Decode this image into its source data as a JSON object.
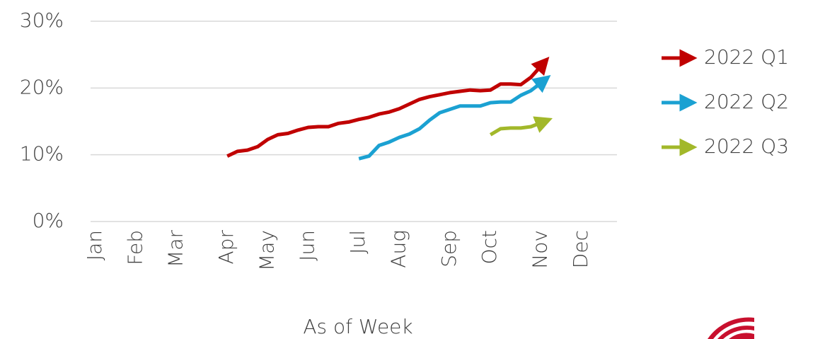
{
  "chart_data": {
    "type": "line",
    "x_label": "As of Week",
    "categories": [
      "Jan",
      null,
      null,
      null,
      "Feb",
      null,
      null,
      null,
      "Mar",
      null,
      null,
      null,
      null,
      "Apr",
      null,
      null,
      null,
      "May",
      null,
      null,
      null,
      "Jun",
      null,
      null,
      null,
      null,
      "Jul",
      null,
      null,
      null,
      "Aug",
      null,
      null,
      null,
      null,
      "Sep",
      null,
      null,
      null,
      "Oct",
      null,
      null,
      null,
      null,
      "Nov",
      null,
      null,
      null,
      "Dec",
      null,
      null,
      null
    ],
    "series": [
      {
        "name": "2022 Q1",
        "color": "#c00000",
        "values": [
          null,
          null,
          null,
          null,
          null,
          null,
          null,
          null,
          null,
          null,
          null,
          null,
          null,
          9.8,
          10.5,
          10.7,
          11.2,
          12.3,
          13.0,
          13.2,
          13.7,
          14.1,
          14.2,
          14.2,
          14.7,
          14.9,
          15.3,
          15.6,
          16.1,
          16.4,
          16.9,
          17.6,
          18.3,
          18.7,
          19.0,
          19.3,
          19.5,
          19.7,
          19.6,
          19.7,
          20.6,
          20.6,
          20.5,
          21.6,
          23.3,
          null,
          null,
          null,
          null,
          null,
          null,
          null
        ]
      },
      {
        "name": "2022 Q2",
        "color": "#1ba1d2",
        "values": [
          null,
          null,
          null,
          null,
          null,
          null,
          null,
          null,
          null,
          null,
          null,
          null,
          null,
          null,
          null,
          null,
          null,
          null,
          null,
          null,
          null,
          null,
          null,
          null,
          null,
          null,
          9.4,
          9.8,
          11.4,
          11.9,
          12.6,
          13.1,
          13.9,
          15.2,
          16.3,
          16.8,
          17.3,
          17.3,
          17.3,
          17.8,
          17.9,
          17.9,
          18.9,
          19.6,
          20.8,
          null,
          null,
          null,
          null,
          null,
          null,
          null
        ]
      },
      {
        "name": "2022 Q3",
        "color": "#a2b82a",
        "values": [
          null,
          null,
          null,
          null,
          null,
          null,
          null,
          null,
          null,
          null,
          null,
          null,
          null,
          null,
          null,
          null,
          null,
          null,
          null,
          null,
          null,
          null,
          null,
          null,
          null,
          null,
          null,
          null,
          null,
          null,
          null,
          null,
          null,
          null,
          null,
          null,
          null,
          null,
          null,
          13.0,
          13.9,
          14.0,
          14.0,
          14.2,
          14.8,
          null,
          null,
          null,
          null,
          null,
          null,
          null
        ]
      }
    ],
    "ylim": [
      0,
      30
    ],
    "yticks": [
      {
        "value": 0,
        "label": "0%"
      },
      {
        "value": 10,
        "label": "10%"
      },
      {
        "value": 20,
        "label": "20%"
      },
      {
        "value": 30,
        "label": "30%"
      }
    ],
    "grid": true,
    "legend": "right"
  }
}
